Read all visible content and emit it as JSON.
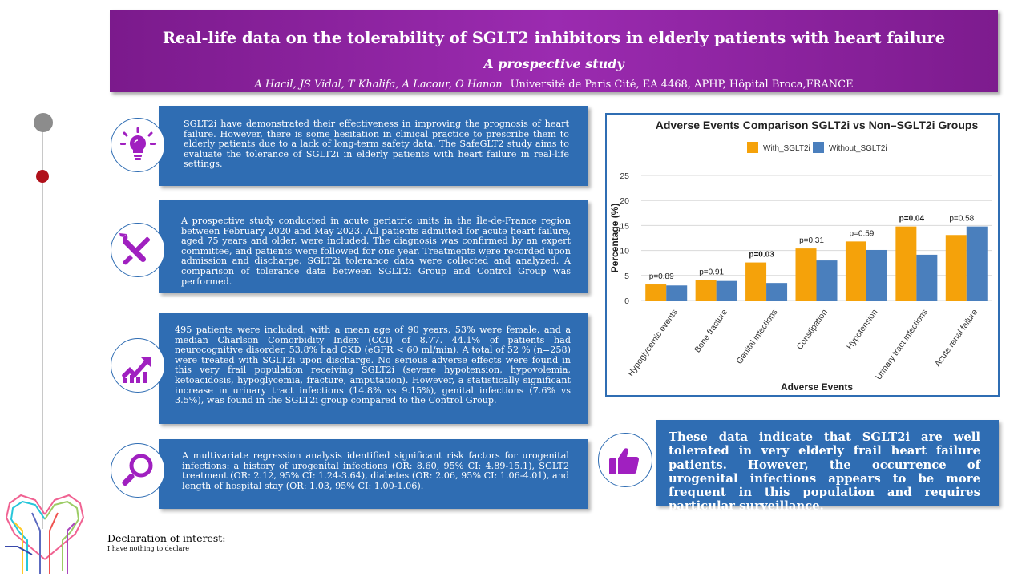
{
  "header": {
    "title": "Real-life data on the tolerability of SGLT2 inhibitors in elderly patients with heart failure",
    "subtitle": "A prospective study",
    "authors": "A Hacil, JS Vidal, T Khalifa, A Lacour, O Hanon",
    "affiliation": "Université de Paris Cité, EA 4468, APHP, Hôpital Broca,FRANCE"
  },
  "sections": {
    "background": "SGLT2i have demonstrated their effectiveness in improving the prognosis of heart failure. However, there is some hesitation in clinical practice to prescribe them to elderly patients due to a lack of long-term safety data. The SafeGLT2 study aims to evaluate the tolerance of SGLT2i in elderly patients with heart failure in real-life settings.",
    "methods": "A prospective study conducted in acute geriatric units in the Île-de-France region between February 2020 and May 2023. All patients admitted for acute heart failure, aged 75 years and older, were included. The diagnosis was confirmed by an expert committee, and patients were followed for one year. Treatments were recorded upon admission and discharge, SGLT2i tolerance data were collected and analyzed. A comparison of tolerance data between SGLT2i Group and Control Group was performed.",
    "results": "495 patients were included, with a mean age of 90 years, 53% were female, and a median Charlson Comorbidity Index (CCI) of 8.77. 44.1% of patients had neurocognitive disorder, 53.8% had CKD (eGFR < 60 ml/min). A total of 52 % (n=258) were treated with SGLT2i upon discharge. No serious adverse effects were found in this very frail population receiving SGLT2i (severe hypotension, hypovolemia, ketoacidosis, hypoglycemia, fracture, amputation). However, a statistically significant increase in urinary tract infections (14.8% vs 9.15%), genital infections (7.6% vs 3.5%), was found in the SGLT2i group compared to the Control Group.",
    "analysis": "A multivariate regression analysis identified significant risk factors for urogenital infections: a history of urogenital infections (OR: 8.60, 95% CI: 4.89-15.1), SGLT2 treatment (OR: 2.12, 95% CI: 1.24-3.64), diabetes (OR: 2.06, 95% CI: 1.06-4.01), and length of hospital stay (OR: 1.03, 95% CI: 1.00-1.06).",
    "conclusion": "These data indicate that SGLT2i are well tolerated in very elderly frail heart failure patients. However, the occurrence of urogenital infections appears to be more frequent in this population and requires particular surveillance."
  },
  "declaration": {
    "title": "Declaration of interest:",
    "text": "I have nothing to declare"
  },
  "icons": [
    "lightbulb-icon",
    "tools-icon",
    "growth-chart-icon",
    "magnifier-icon",
    "thumbs-up-icon",
    "heart-circuit-logo"
  ],
  "colors": {
    "banner": "#8e24aa",
    "box": "#2f6db3",
    "icon": "#a020c0",
    "with": "#f5a20a",
    "without": "#4a7fbd",
    "timeline_red": "#b0101a"
  },
  "chart_data": {
    "type": "bar",
    "title": "Adverse Events Comparison SGLT2i vs Non–SGLT2i Groups",
    "xlabel": "Adverse Events",
    "ylabel": "Percentage (%)",
    "ylim": [
      0,
      25
    ],
    "yticks": [
      0,
      5,
      10,
      15,
      20,
      25
    ],
    "grid": true,
    "legend_position": "top",
    "categories": [
      "Hypoglycemic events",
      "Bone fracture",
      "Genital infections",
      "Constipation",
      "Hypotension",
      "Urinary tract infections",
      "Acute renal failure"
    ],
    "series": [
      {
        "name": "With_SGLT2i",
        "color": "#f5a20a",
        "values": [
          3.2,
          4.1,
          7.6,
          10.4,
          11.8,
          14.8,
          13.1
        ]
      },
      {
        "name": "Without_SGLT2i",
        "color": "#4a7fbd",
        "values": [
          3.0,
          3.9,
          3.5,
          8.0,
          10.1,
          9.15,
          14.8
        ]
      }
    ],
    "annotations": [
      {
        "label": "p=0.89",
        "bold": false
      },
      {
        "label": "p=0.91",
        "bold": false
      },
      {
        "label": "p=0.03",
        "bold": true
      },
      {
        "label": "p=0.31",
        "bold": false
      },
      {
        "label": "p=0.59",
        "bold": false
      },
      {
        "label": "p=0.04",
        "bold": true
      },
      {
        "label": "p=0.58",
        "bold": false
      }
    ]
  }
}
